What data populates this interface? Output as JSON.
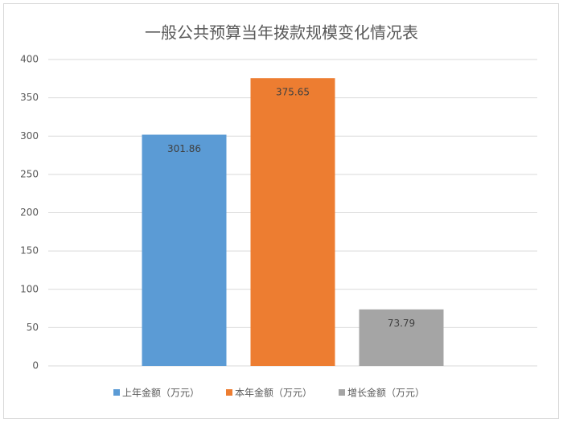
{
  "chart_data": {
    "type": "bar",
    "title": "一般公共预算当年拨款规模变化情况表",
    "categories": [
      null
    ],
    "series": [
      {
        "name": "上年金额（万元）",
        "color": "#5b9bd5",
        "values": [
          301.86
        ]
      },
      {
        "name": "本年金额（万元）",
        "color": "#ed7d31",
        "values": [
          375.65
        ]
      },
      {
        "name": "增长金额（万元）",
        "color": "#a5a5a5",
        "values": [
          73.79
        ]
      }
    ],
    "ylim": [
      0,
      400
    ],
    "yticks": [
      0,
      50,
      100,
      150,
      200,
      250,
      300,
      350,
      400
    ],
    "grid": true,
    "legend": "bottom"
  }
}
